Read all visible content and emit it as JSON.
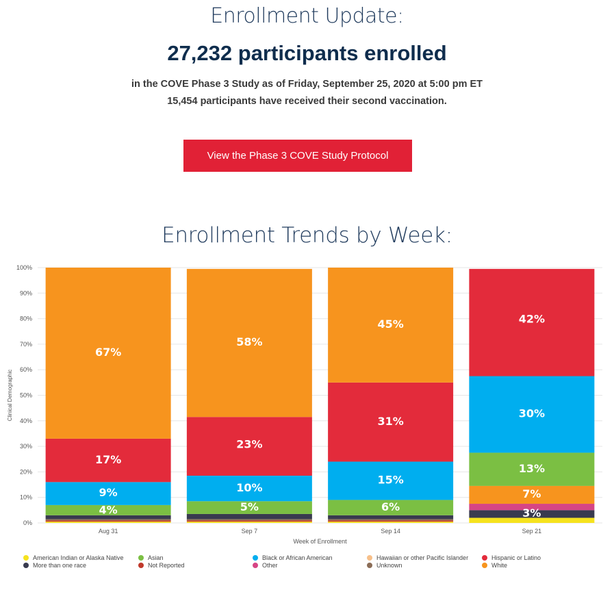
{
  "header": {
    "title": "Enrollment Update:",
    "headline": "27,232 participants enrolled",
    "line1": "in the COVE Phase 3 Study as of Friday, September 25, 2020 at 5:00 pm ET",
    "line2": "15,454 participants have received their second vaccination."
  },
  "cta": {
    "label": "View the Phase 3 COVE Study Protocol"
  },
  "chart_title": "Enrollment Trends by Week:",
  "chart_data": {
    "type": "bar",
    "stacked": true,
    "xlabel": "Week of Enrollment",
    "ylabel": "Clinical Demographic",
    "ylim": [
      0,
      100
    ],
    "yticks": [
      "0%",
      "10%",
      "20%",
      "30%",
      "40%",
      "50%",
      "60%",
      "70%",
      "80%",
      "90%",
      "100%"
    ],
    "categories": [
      "Aug 31",
      "Sep 7",
      "Sep 14",
      "Sep 21"
    ],
    "series": [
      {
        "name": "American Indian or Alaska Native",
        "color": "#f6e31e",
        "values": [
          0.5,
          0.5,
          0.5,
          2
        ]
      },
      {
        "name": "Not Reported",
        "color": "#c0392b",
        "values": [
          0.5,
          0.5,
          0.5,
          0
        ]
      },
      {
        "name": "Unknown",
        "color": "#8b6d57",
        "values": [
          0.5,
          0.5,
          0.5,
          0
        ]
      },
      {
        "name": "More than one race",
        "color": "#393b4f",
        "values": [
          1.5,
          2,
          1.5,
          3
        ]
      },
      {
        "name": "Other",
        "color": "#d64585",
        "values": [
          0,
          0,
          0,
          2.5
        ]
      },
      {
        "name": "Asian",
        "color": "#7bbf43",
        "values": [
          4,
          5,
          6,
          0
        ]
      },
      {
        "name": "White",
        "color": "#f7941e",
        "values": [
          0,
          0,
          0,
          7
        ]
      },
      {
        "name": "Asian",
        "color": "#7bbf43",
        "values": [
          0,
          0,
          0,
          13
        ]
      },
      {
        "name": "Black or African American",
        "color": "#00aeef",
        "values": [
          9,
          10,
          15,
          30
        ]
      },
      {
        "name": "Hawaiian or other Pacific Islander",
        "color": "#f7c08a",
        "values": [
          0,
          0,
          0,
          0
        ]
      },
      {
        "name": "Hispanic or Latino",
        "color": "#e32b3b",
        "values": [
          17,
          23,
          31,
          42
        ]
      },
      {
        "name": "White",
        "color": "#f7941e",
        "values": [
          67,
          58,
          45,
          0
        ]
      }
    ],
    "data_labels": [
      {
        "category": "Aug 31",
        "labels": [
          {
            "text": "4%",
            "at": 5.2
          },
          {
            "text": "9%",
            "at": 12
          },
          {
            "text": "17%",
            "at": 25
          },
          {
            "text": "67%",
            "at": 67
          }
        ]
      },
      {
        "category": "Sep 7",
        "labels": [
          {
            "text": "5%",
            "at": 6.5
          },
          {
            "text": "10%",
            "at": 14
          },
          {
            "text": "23%",
            "at": 31
          },
          {
            "text": "58%",
            "at": 71
          }
        ]
      },
      {
        "category": "Sep 14",
        "labels": [
          {
            "text": "6%",
            "at": 6.5
          },
          {
            "text": "15%",
            "at": 17
          },
          {
            "text": "31%",
            "at": 40
          },
          {
            "text": "45%",
            "at": 78
          }
        ]
      },
      {
        "category": "Sep 21",
        "labels": [
          {
            "text": "3%",
            "at": 4
          },
          {
            "text": "7%",
            "at": 11.5
          },
          {
            "text": "13%",
            "at": 21.5
          },
          {
            "text": "30%",
            "at": 43
          },
          {
            "text": "42%",
            "at": 80
          }
        ]
      }
    ],
    "legend": [
      {
        "label": "American Indian or Alaska Native",
        "color": "#f6e31e"
      },
      {
        "label": "Asian",
        "color": "#7bbf43"
      },
      {
        "label": "Black or African American",
        "color": "#00aeef"
      },
      {
        "label": "Hawaiian or other Pacific Islander",
        "color": "#f7c08a"
      },
      {
        "label": "Hispanic or Latino",
        "color": "#e32b3b"
      },
      {
        "label": "More than one race",
        "color": "#393b4f"
      },
      {
        "label": "Not Reported",
        "color": "#c0392b"
      },
      {
        "label": "Other",
        "color": "#d64585"
      },
      {
        "label": "Unknown",
        "color": "#8b6d57"
      },
      {
        "label": "White",
        "color": "#f7941e"
      }
    ],
    "legend_position": "bottom",
    "grid": true
  }
}
